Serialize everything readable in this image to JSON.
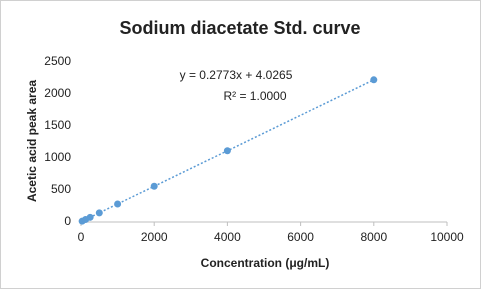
{
  "chart_data": {
    "type": "scatter",
    "title": "Sodium diacetate  Std. curve",
    "x_label": "Concentration  (μg/mL)",
    "y_label": "Acetic acid  peak area",
    "equation": "y = 0.2773x + 4.0265",
    "r_squared": "R² = 1.0000",
    "trendline": "linear",
    "color": "#5b9bd5",
    "x": [
      31.25,
      125,
      250,
      500,
      1000,
      2000,
      4000,
      8000
    ],
    "values": [
      13,
      39,
      73,
      143,
      281,
      559,
      1113,
      2222
    ],
    "xlim": [
      0,
      10000
    ],
    "xticks": [
      0,
      2000,
      4000,
      6000,
      8000,
      10000
    ],
    "ylim": [
      0,
      2500
    ],
    "yticks": [
      0,
      500,
      1000,
      1500,
      2000,
      2500
    ],
    "grid": false
  }
}
